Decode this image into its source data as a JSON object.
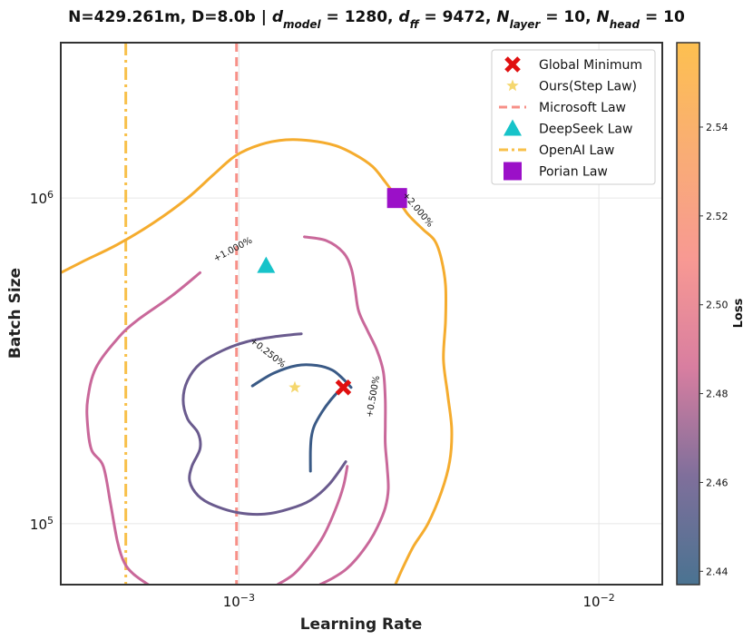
{
  "chart_data": {
    "type": "line",
    "title_parts": {
      "n_d": "N=429.261m, D=8.0b | ",
      "dmodel_var": "d",
      "dmodel_sub": "model",
      "dmodel_val": " = 1280, ",
      "dff_var": "d",
      "dff_sub": "ff",
      "dff_val": " = 9472, ",
      "nlayer_var": "N",
      "nlayer_sub": "layer",
      "nlayer_val": " = 10, ",
      "nhead_var": "N",
      "nhead_sub": "head",
      "nhead_val": " = 10"
    },
    "xlabel": "Learning Rate",
    "ylabel": "Batch Size",
    "x_scale": "log",
    "y_scale": "log",
    "xlim": [
      0.00032,
      0.015
    ],
    "ylim": [
      65000,
      3000000
    ],
    "x_ticks": [
      {
        "value": 0.001,
        "base": "10",
        "exp": "−3"
      },
      {
        "value": 0.01,
        "base": "10",
        "exp": "−2"
      }
    ],
    "y_ticks": [
      {
        "value": 100000,
        "base": "10",
        "exp": "5"
      },
      {
        "value": 1000000,
        "base": "10",
        "exp": "6"
      }
    ],
    "grid": true,
    "legend_position": "top-right",
    "legend": [
      {
        "key": "global_min",
        "label": "Global Minimum"
      },
      {
        "key": "ours",
        "label": "Ours(Step Law)"
      },
      {
        "key": "microsoft",
        "label": "Microsoft Law"
      },
      {
        "key": "deepseek",
        "label": "DeepSeek Law"
      },
      {
        "key": "openai",
        "label": "OpenAI Law"
      },
      {
        "key": "porian",
        "label": "Porian Law"
      }
    ],
    "points": {
      "global_min": {
        "x": 0.00195,
        "y": 262000
      },
      "ours": {
        "x": 0.00143,
        "y": 262000
      },
      "deepseek": {
        "x": 0.00119,
        "y": 620000
      },
      "porian": {
        "x": 0.00275,
        "y": 1000000
      }
    },
    "vlines": {
      "microsoft": {
        "x": 0.000985
      },
      "openai": {
        "x": 0.000485
      }
    },
    "colors": {
      "global_min": "#e01010",
      "ours": "#f5d76e",
      "microsoft": "#f79088",
      "deepseek": "#17c3c9",
      "openai": "#f8c04a",
      "porian": "#9b10c8",
      "grid": "#e6e6e6"
    },
    "contours": [
      {
        "label": "+0.250%",
        "color": "#3a5a86",
        "label_at": {
          "x": 0.00119,
          "y": 330000
        },
        "paths": [
          [
            [
              0.00109,
              265000
            ],
            [
              0.00125,
              290000
            ],
            [
              0.00145,
              306000
            ],
            [
              0.00165,
              306000
            ],
            [
              0.00182,
              296000
            ],
            [
              0.00195,
              278000
            ],
            [
              0.00205,
              262000
            ]
          ],
          [
            [
              0.00195,
              265000
            ],
            [
              0.0018,
              240000
            ],
            [
              0.0017,
              220000
            ],
            [
              0.00162,
              200000
            ],
            [
              0.00159,
              185000
            ],
            [
              0.00158,
              168000
            ],
            [
              0.00158,
              145000
            ]
          ]
        ]
      },
      {
        "label": "+0.500%",
        "color": "#6a5b8e",
        "label_at": {
          "x": 0.0024,
          "y": 245000
        },
        "paths": [
          [
            [
              0.00149,
              383000
            ],
            [
              0.00125,
              375000
            ],
            [
              0.00105,
              362000
            ],
            [
              0.0009,
              340000
            ],
            [
              0.00078,
              310000
            ],
            [
              0.00072,
              275000
            ],
            [
              0.0007,
              240000
            ],
            [
              0.00072,
              210000
            ],
            [
              0.00077,
              190000
            ],
            [
              0.00078,
              170000
            ],
            [
              0.00074,
              150000
            ],
            [
              0.00073,
              135000
            ],
            [
              0.00077,
              122000
            ],
            [
              0.00085,
              114000
            ],
            [
              0.001,
              108000
            ],
            [
              0.00118,
              107000
            ],
            [
              0.00138,
              111000
            ],
            [
              0.00158,
              118000
            ],
            [
              0.00178,
              132000
            ],
            [
              0.00198,
              155000
            ]
          ]
        ]
      },
      {
        "label": "+1.000%",
        "color": "#c9689a",
        "label_at": {
          "x": 0.00097,
          "y": 683000
        },
        "paths": [
          [
            [
              0.00078,
              590000
            ],
            [
              0.00065,
              500000
            ],
            [
              0.00052,
              420000
            ],
            [
              0.00046,
              370000
            ],
            [
              0.0004,
              300000
            ],
            [
              0.00038,
              240000
            ],
            [
              0.00038,
              200000
            ],
            [
              0.00039,
              168000
            ],
            [
              0.00042,
              150000
            ],
            [
              0.00044,
              115000
            ],
            [
              0.00046,
              88000
            ],
            [
              0.00048,
              76000
            ],
            [
              0.00051,
              70000
            ],
            [
              0.00056,
              65000
            ]
          ],
          [
            [
              0.00152,
              760000
            ],
            [
              0.00175,
              740000
            ],
            [
              0.00195,
              680000
            ],
            [
              0.00205,
              610000
            ],
            [
              0.0021,
              530000
            ],
            [
              0.00215,
              450000
            ],
            [
              0.00228,
              390000
            ],
            [
              0.00242,
              340000
            ],
            [
              0.00252,
              292000
            ],
            [
              0.00255,
              240000
            ],
            [
              0.00255,
              200000
            ],
            [
              0.00255,
              175000
            ],
            [
              0.00258,
              150000
            ],
            [
              0.0026,
              128000
            ],
            [
              0.00255,
              112000
            ],
            [
              0.00243,
              98000
            ],
            [
              0.0023,
              88000
            ],
            [
              0.00212,
              78000
            ],
            [
              0.00197,
              72000
            ],
            [
              0.00182,
              68000
            ],
            [
              0.00168,
              65000
            ]
          ],
          [
            [
              0.00128,
              65000
            ],
            [
              0.00142,
              70000
            ],
            [
              0.00158,
              80000
            ],
            [
              0.00172,
              92000
            ],
            [
              0.00185,
              110000
            ],
            [
              0.00195,
              130000
            ],
            [
              0.002,
              150000
            ]
          ]
        ]
      },
      {
        "label": "+2.000%",
        "color": "#f5ac2e",
        "label_at": {
          "x": 0.0031,
          "y": 910000
        },
        "paths": [
          [
            [
              0.00032,
              590000
            ],
            [
              0.00037,
              640000
            ],
            [
              0.00046,
              720000
            ],
            [
              0.00058,
              840000
            ],
            [
              0.00072,
              1000000
            ],
            [
              0.00085,
              1180000
            ],
            [
              0.00098,
              1350000
            ],
            [
              0.00115,
              1460000
            ],
            [
              0.00135,
              1510000
            ],
            [
              0.00158,
              1500000
            ],
            [
              0.00185,
              1450000
            ],
            [
              0.0021,
              1360000
            ],
            [
              0.00235,
              1250000
            ],
            [
              0.00255,
              1120000
            ],
            [
              0.00275,
              1000000
            ],
            [
              0.00295,
              890000
            ],
            [
              0.00325,
              800000
            ],
            [
              0.0035,
              740000
            ],
            [
              0.00365,
              650000
            ],
            [
              0.00375,
              540000
            ],
            [
              0.00375,
              420000
            ],
            [
              0.0037,
              320000
            ],
            [
              0.0038,
              250000
            ],
            [
              0.0039,
              195000
            ],
            [
              0.00385,
              155000
            ],
            [
              0.00365,
              125000
            ],
            [
              0.00335,
              100000
            ],
            [
              0.00305,
              85000
            ],
            [
              0.00285,
              73000
            ],
            [
              0.00272,
              65000
            ]
          ]
        ]
      }
    ],
    "colorbar": {
      "label": "Loss",
      "min": 2.437,
      "max": 2.559,
      "ticks": [
        2.44,
        2.46,
        2.48,
        2.5,
        2.52,
        2.54
      ],
      "tick_labels": [
        "2.44",
        "2.46",
        "2.48",
        "2.50",
        "2.52",
        "2.54"
      ],
      "stops": [
        "#4a7391",
        "#7f6f9b",
        "#d87ea0",
        "#f89993",
        "#f9ad74",
        "#fdc050"
      ]
    }
  }
}
